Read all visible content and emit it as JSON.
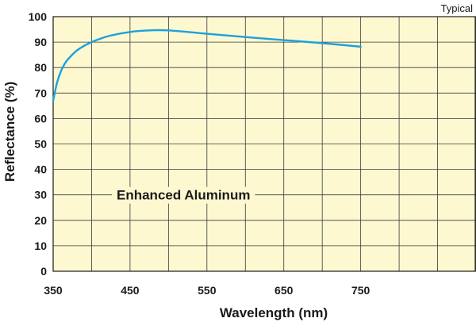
{
  "chart_data": {
    "type": "line",
    "title": "",
    "note": "Typical",
    "xlabel": "Wavelength (nm)",
    "ylabel": "Reflectance (%)",
    "xlim": [
      350,
      900
    ],
    "ylim": [
      0,
      100
    ],
    "x_ticks": [
      350,
      450,
      550,
      650,
      750
    ],
    "x_tick_labels": [
      "350",
      "450",
      "550",
      "650",
      "750"
    ],
    "x_grid": [
      350,
      400,
      450,
      500,
      550,
      600,
      650,
      700,
      750,
      800,
      850,
      900
    ],
    "y_ticks": [
      0,
      10,
      20,
      30,
      40,
      50,
      60,
      70,
      80,
      90,
      100
    ],
    "y_tick_labels": [
      "0",
      "10",
      "20",
      "30",
      "40",
      "50",
      "60",
      "70",
      "80",
      "90",
      "100"
    ],
    "grid": true,
    "background_color": "#fdf8d0",
    "series": [
      {
        "name": "Enhanced Aluminum",
        "color": "#1ba1de",
        "x": [
          350,
          355,
          360,
          365,
          370,
          380,
          390,
          400,
          410,
          425,
          450,
          475,
          500,
          550,
          600,
          650,
          700,
          750
        ],
        "y": [
          67,
          74,
          78.5,
          81.5,
          83.5,
          86.5,
          88.5,
          90,
          91.2,
          92.6,
          94,
          94.6,
          94.6,
          93.3,
          92,
          90.8,
          89.6,
          88.2
        ]
      }
    ]
  }
}
